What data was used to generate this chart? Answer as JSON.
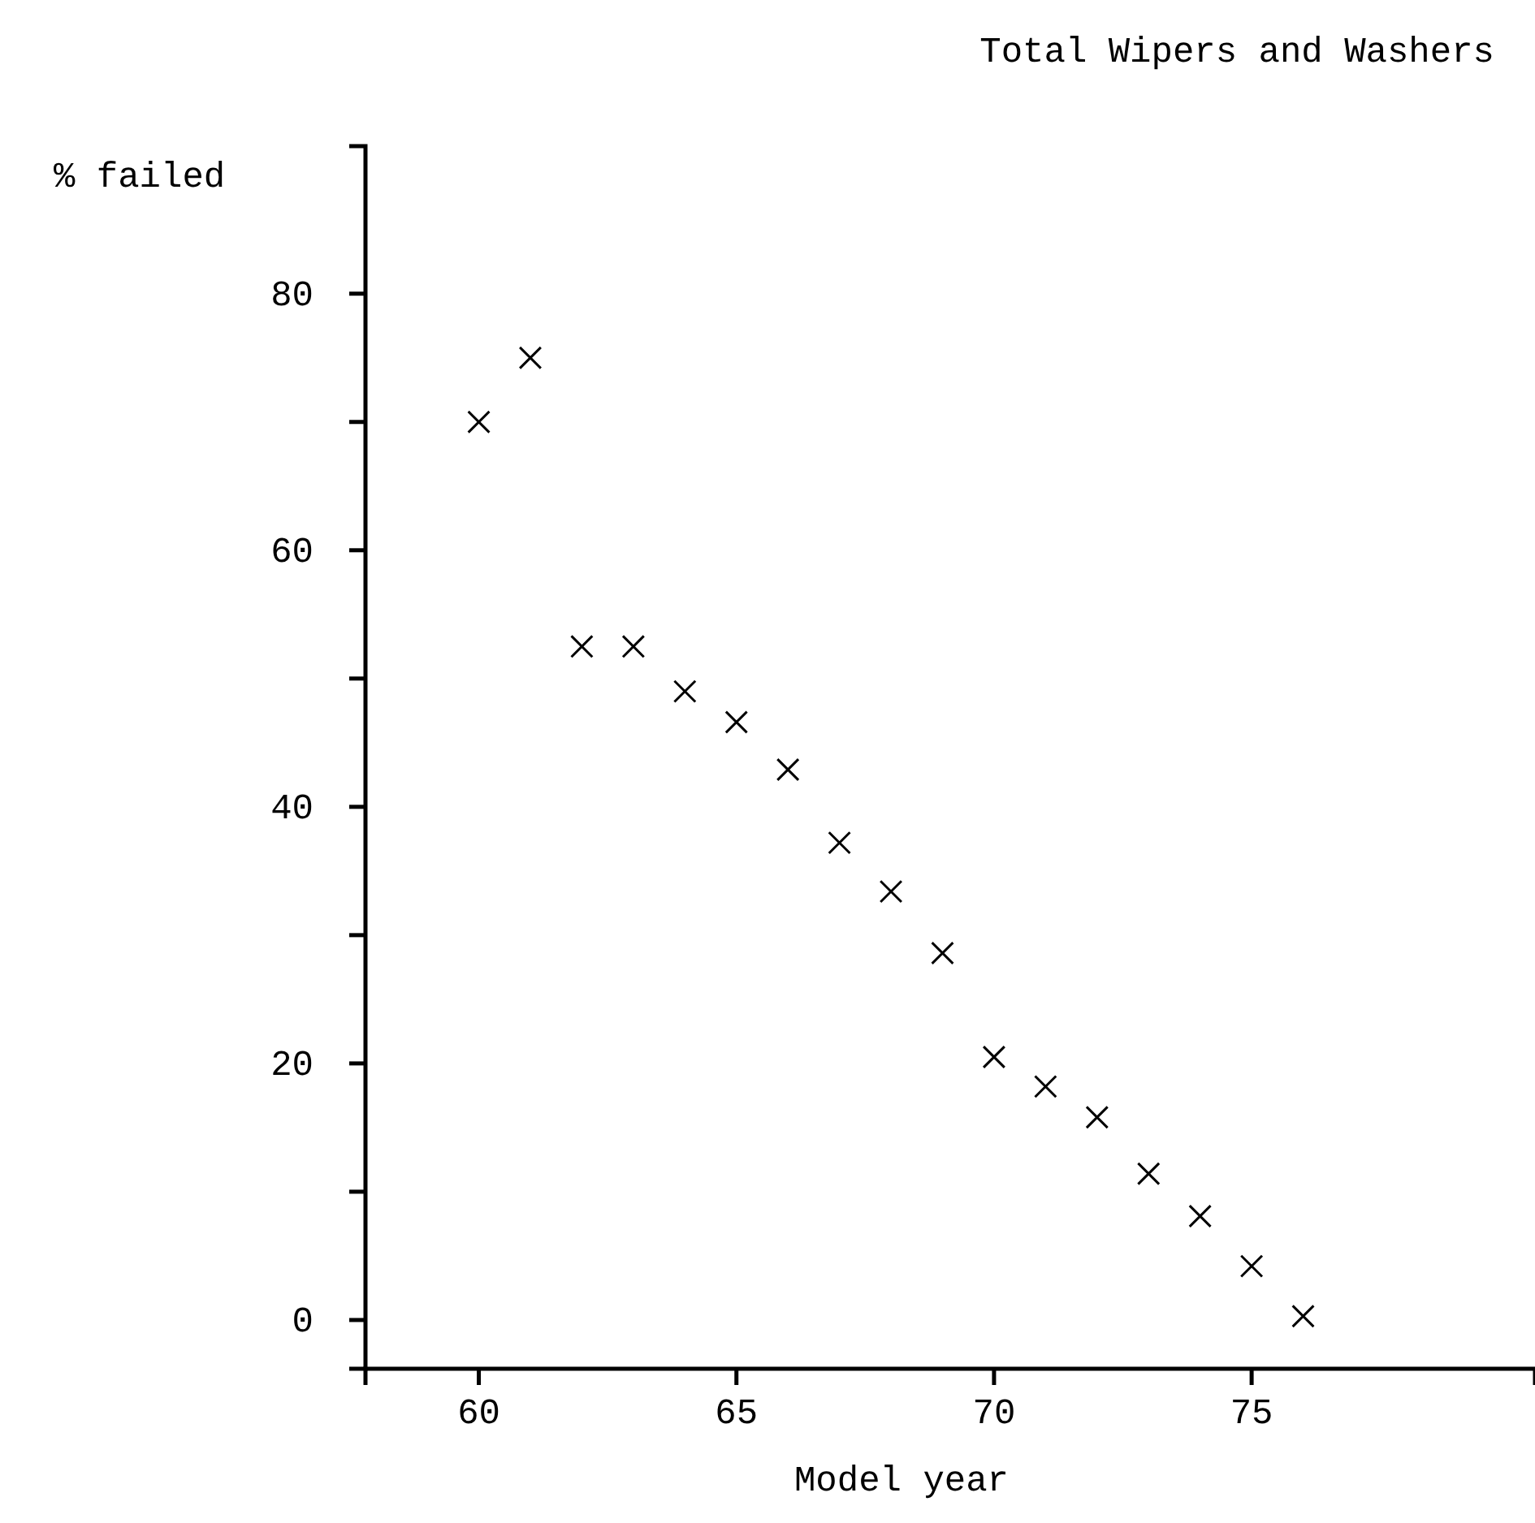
{
  "chart_data": {
    "type": "scatter",
    "title": "Total Wipers and Washers",
    "xlabel": "Model year",
    "ylabel": "% failed",
    "x": [
      60,
      61,
      62,
      63,
      64,
      65,
      66,
      67,
      68,
      69,
      70,
      71,
      72,
      73,
      74,
      75,
      76
    ],
    "series": [
      {
        "color": "#000000",
        "values": [
          70,
          75,
          52.5,
          52.5,
          49,
          46.6,
          42.9,
          37.2,
          33.4,
          28.6,
          20.5,
          18.2,
          15.8,
          11.4,
          8.1,
          4.2,
          0.3
        ]
      }
    ],
    "xlim": [
      57.8,
      80.5
    ],
    "ylim": [
      -3.8,
      91.5
    ],
    "xticks": [
      60,
      65,
      70,
      75
    ],
    "yticks": [
      0,
      {
        "value": 10,
        "label": null
      },
      20,
      {
        "value": 30,
        "label": null
      },
      40,
      {
        "value": 50,
        "label": null
      },
      60,
      {
        "value": 70,
        "label": null
      },
      80
    ],
    "grid": false,
    "marker": "cross"
  }
}
